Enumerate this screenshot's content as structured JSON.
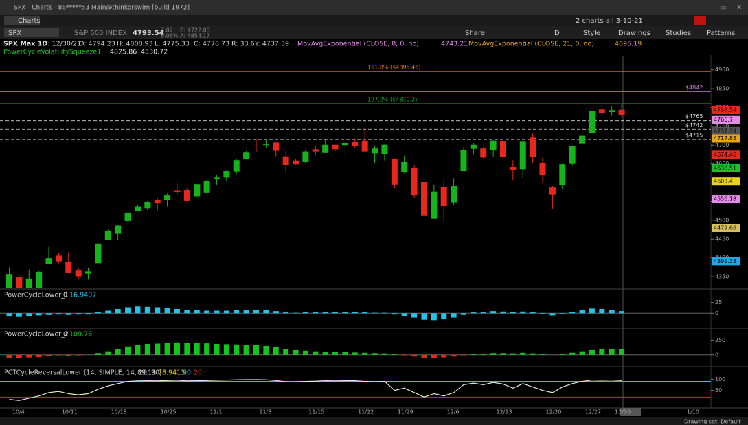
{
  "window": {
    "title": "SPX - Charts - 86*****53 Main@thinkorswim [build 1972]",
    "tab": "Charts",
    "layout": "2 charts all 3-10-21"
  },
  "toolbar": {
    "symbol": "SPX",
    "description": "S&P 500 INDEX",
    "last": "4793.54",
    "change": "3.02",
    "change_pct": "0.06%",
    "bid": "B: 4722.03",
    "ask": "A: 4854.17",
    "share": "Share",
    "period": "D",
    "style": "Style",
    "drawings": "Drawings",
    "studies": "Studies",
    "patterns": "Patterns"
  },
  "study_header": {
    "chart": "SPX Max 1D",
    "date": "D: 12/30/21",
    "open": "O: 4794.23",
    "high": "H: 4808.93",
    "low": "L: 4775.33",
    "close": "C: 4778.73",
    "range": "R: 33.6",
    "prev": "Y: 4737.39",
    "ema8": "MovAvgExponential (CLOSE, 8, 0, no)",
    "ema8_value": "4743.21",
    "ema21": "MovAvgExponential (CLOSE, 21, 0, no)",
    "ema21_value": "4695.19",
    "squeeze": "PowerCycleVolatilitySqueeze1",
    "squeeze_upper": "4825.86",
    "squeeze_lower": "4530.72"
  },
  "status": {
    "drawing_set": "Drawing set: Default",
    "future_date": "1/10"
  },
  "chart_data": [
    {
      "type": "candlestick",
      "categories": [
        null,
        "10/4",
        null,
        null,
        null,
        null,
        "10/11",
        null,
        null,
        null,
        null,
        "10/18",
        null,
        null,
        null,
        null,
        "10/25",
        null,
        null,
        null,
        null,
        "11/1",
        null,
        null,
        null,
        null,
        "11/8",
        null,
        null,
        null,
        null,
        "11/15",
        null,
        null,
        null,
        null,
        "11/22",
        null,
        null,
        null,
        "11/29",
        null,
        null,
        null,
        null,
        "12/6",
        null,
        null,
        null,
        null,
        "12/13",
        null,
        null,
        null,
        null,
        "12/20",
        null,
        null,
        null,
        "12/27",
        null,
        null,
        "12/30"
      ],
      "open": [
        4317,
        4348,
        4309,
        4319,
        4383,
        4406,
        4390,
        4368,
        4358,
        4386,
        4448,
        4464,
        4498,
        4524,
        4532,
        4553,
        4553,
        4579,
        4580,
        4563,
        4573,
        4610,
        4614,
        4630,
        4662,
        4699,
        4701,
        4707,
        4670,
        4659,
        4655,
        4689,
        4679,
        4701,
        4700,
        4708,
        4712,
        4678,
        4675,
        4664,
        4628,
        4640,
        4602,
        4504,
        4589,
        4548,
        4631,
        4690,
        4691,
        4687,
        4710,
        4642,
        4636,
        4720,
        4652,
        4587,
        4594,
        4650,
        4703,
        4733,
        4795,
        4788,
        4794
      ],
      "high": [
        4375,
        4355,
        4369,
        4365,
        4429,
        4412,
        4415,
        4374,
        4372,
        4439,
        4475,
        4487,
        4520,
        4540,
        4551,
        4559,
        4572,
        4598,
        4585,
        4597,
        4608,
        4620,
        4635,
        4664,
        4684,
        4718,
        4715,
        4708,
        4685,
        4664,
        4688,
        4697,
        4714,
        4701,
        4708,
        4718,
        4744,
        4699,
        4702,
        4665,
        4672,
        4646,
        4652,
        4595,
        4608,
        4612,
        4694,
        4705,
        4695,
        4713,
        4710,
        4660,
        4712,
        4731,
        4667,
        4591,
        4651,
        4697,
        4740,
        4791,
        4807,
        4804,
        4809
      ],
      "low": [
        4288,
        4278,
        4304,
        4290,
        4383,
        4386,
        4360,
        4342,
        4342,
        4386,
        4448,
        4447,
        4496,
        4524,
        4527,
        4526,
        4537,
        4570,
        4551,
        4562,
        4572,
        4595,
        4604,
        4624,
        4663,
        4681,
        4694,
        4670,
        4630,
        4648,
        4650,
        4673,
        4679,
        4684,
        4672,
        4692,
        4682,
        4652,
        4659,
        4585,
        4625,
        4560,
        4510,
        4504,
        4495,
        4540,
        4631,
        4674,
        4665,
        4670,
        4667,
        4607,
        4612,
        4651,
        4600,
        4531,
        4583,
        4645,
        4703,
        4733,
        4780,
        4778,
        4775
      ],
      "close": [
        4357,
        4300,
        4345,
        4363,
        4399,
        4391,
        4361,
        4351,
        4364,
        4438,
        4471,
        4486,
        4520,
        4537,
        4549,
        4545,
        4567,
        4575,
        4551,
        4596,
        4605,
        4614,
        4631,
        4660,
        4680,
        4697,
        4702,
        4685,
        4646,
        4649,
        4683,
        4683,
        4701,
        4689,
        4705,
        4698,
        4683,
        4691,
        4701,
        4595,
        4655,
        4567,
        4513,
        4577,
        4538,
        4591,
        4686,
        4701,
        4667,
        4712,
        4669,
        4635,
        4709,
        4668,
        4620,
        4568,
        4649,
        4697,
        4725,
        4791,
        4786,
        4793,
        4779
      ],
      "up_color": "#17b31b",
      "down_color": "#e8281c",
      "ylim": [
        4319,
        4936
      ],
      "yticks": [
        4350,
        4400,
        4450,
        4500,
        4550,
        4600,
        4650,
        4700,
        4750,
        4800,
        4850,
        4900
      ],
      "levels": [
        {
          "value": 4895.46,
          "label": "161.8% ($4895.46)",
          "color": "#e87d1e"
        },
        {
          "value": 4810.2,
          "label": "127.2% ($4810.2)",
          "color": "#1fa82a"
        },
        {
          "value": 4842,
          "label": "$4842",
          "color": "#c77bd8"
        },
        {
          "value": 4765,
          "label": "$4765",
          "color": "#d8d8d8"
        },
        {
          "value": 4742,
          "label": "$4742",
          "color": "#d8d8d8"
        },
        {
          "value": 4715,
          "label": "$4715",
          "color": "#d8d8d8"
        }
      ],
      "price_labels": [
        4793.54,
        4766.7,
        4737.39,
        4717.85,
        4674.46,
        4638.51,
        4603.4,
        4556.18,
        4479.66,
        4391.33
      ],
      "price_label_colors": [
        "#e8281c",
        "#e48ae8",
        "#555555",
        "#e8a31c",
        "#e8281c",
        "#1fbf2a",
        "#e8d21c",
        "#e48ae8",
        "#d8c060",
        "#1fa8e8"
      ]
    },
    {
      "type": "bar",
      "title": "PowerCycleLower_1",
      "zero": "0",
      "current": "16.9497",
      "values": [
        -6,
        -7,
        -6,
        -5,
        -4,
        -3,
        -4,
        -3,
        -3,
        2,
        6,
        10,
        14,
        16,
        15,
        14,
        12,
        10,
        8,
        7,
        6,
        6,
        6,
        7,
        8,
        8,
        7,
        5,
        2,
        1,
        2,
        3,
        3,
        2,
        3,
        3,
        2,
        1,
        1,
        -3,
        -6,
        -10,
        -15,
        -16,
        -14,
        -10,
        -4,
        2,
        3,
        5,
        4,
        2,
        4,
        2,
        -2,
        -5,
        -1,
        3,
        7,
        11,
        10,
        8,
        5
      ],
      "positive_color": "#22c4ec",
      "negative_color": "#22c4ec",
      "ylim": [
        -33,
        53
      ],
      "yticks": [
        25,
        0
      ]
    },
    {
      "type": "bar",
      "title": "PowerCycleLower_2",
      "zero": "0",
      "current": "109.76",
      "values": [
        -50,
        -55,
        -45,
        -40,
        -20,
        -10,
        -15,
        -10,
        0,
        30,
        60,
        100,
        140,
        170,
        185,
        190,
        200,
        210,
        205,
        200,
        195,
        185,
        180,
        175,
        170,
        165,
        150,
        130,
        100,
        80,
        70,
        60,
        55,
        50,
        45,
        40,
        35,
        30,
        25,
        10,
        -10,
        -30,
        -50,
        -55,
        -45,
        -30,
        -10,
        10,
        20,
        30,
        30,
        25,
        35,
        25,
        10,
        0,
        15,
        35,
        60,
        80,
        90,
        95,
        100
      ],
      "positive_color": "#17c41d",
      "negative_color": "#e8281c",
      "ylim": [
        -190,
        430
      ],
      "yticks": [
        250,
        0
      ]
    },
    {
      "type": "line",
      "title": "PCTCycleReversalLower (14, SIMPLE, 14, 20, 90)",
      "current": "89.13",
      "average": "78.9413",
      "upper": "90",
      "lower": "20",
      "values": [
        10,
        5,
        15,
        25,
        40,
        45,
        35,
        30,
        35,
        55,
        70,
        80,
        90,
        92,
        93,
        92,
        94,
        95,
        92,
        93,
        94,
        95,
        96,
        97,
        98,
        98,
        97,
        94,
        88,
        87,
        90,
        91,
        93,
        92,
        93,
        93,
        90,
        88,
        90,
        50,
        60,
        40,
        20,
        35,
        25,
        40,
        75,
        82,
        75,
        85,
        78,
        60,
        80,
        65,
        50,
        40,
        65,
        80,
        90,
        96,
        95,
        96,
        94
      ],
      "color": "#e8e8e8",
      "ylim": [
        -25,
        150
      ],
      "yticks": [
        100,
        50
      ],
      "ref_lines": [
        {
          "value": 90,
          "color": "#22c4ec"
        },
        {
          "value": 20,
          "color": "#e8281c"
        }
      ]
    }
  ]
}
